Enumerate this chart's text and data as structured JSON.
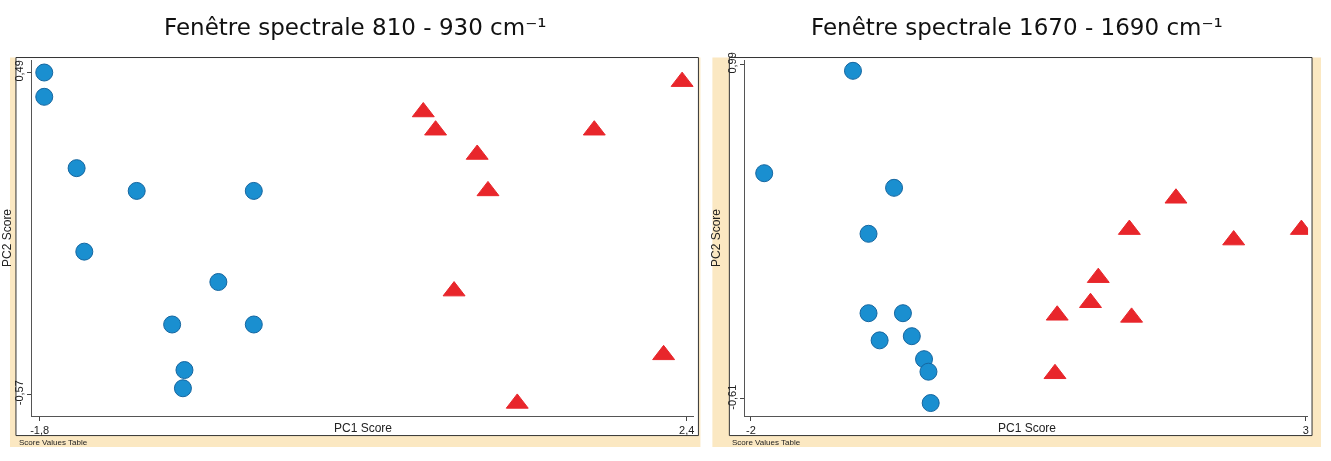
{
  "chart_data": [
    {
      "type": "scatter",
      "title": "Fenêtre spectrale 810 - 930 cm⁻¹",
      "xlabel": "PC1 Score",
      "ylabel": "PC2 Score",
      "annotations": [
        "Score Values Table"
      ],
      "xlim": [
        -1.85,
        2.45
      ],
      "ylim": [
        -0.64,
        0.53
      ],
      "xticks": [
        {
          "value": -1.8,
          "label": "-1,8"
        },
        {
          "value": 2.4,
          "label": "2,4"
        }
      ],
      "yticks": [
        {
          "value": -0.57,
          "label": "-0,57"
        },
        {
          "value": 0.49,
          "label": "0,49"
        }
      ],
      "grid": false,
      "series": [
        {
          "color": "#1a8fd0",
          "marker": "circle",
          "x": [
            -1.77,
            -1.77,
            -1.56,
            -1.17,
            -0.41,
            -1.51,
            -0.64,
            -0.94,
            -0.41,
            -0.86,
            -0.87
          ],
          "values": [
            0.49,
            0.41,
            0.175,
            0.1,
            0.1,
            -0.1,
            -0.2,
            -0.34,
            -0.34,
            -0.49,
            -0.55
          ]
        },
        {
          "color": "#e8262b",
          "marker": "triangle",
          "x": [
            2.37,
            0.69,
            0.77,
            1.04,
            1.11,
            1.8,
            0.89,
            2.25,
            1.3
          ],
          "values": [
            0.46,
            0.36,
            0.3,
            0.22,
            0.1,
            0.3,
            -0.23,
            -0.44,
            -0.6
          ]
        }
      ]
    },
    {
      "type": "scatter",
      "title": "Fenêtre spectrale 1670 - 1690 cm⁻¹",
      "xlabel": "PC1 Score",
      "ylabel": "PC2 Score",
      "annotations": [
        "Score Values Table"
      ],
      "xlim": [
        -2.05,
        3.02
      ],
      "ylim": [
        -0.69,
        1.01
      ],
      "xticks": [
        -2,
        3
      ],
      "yticks": [
        {
          "value": -0.61,
          "label": "-0,61"
        },
        {
          "value": 0.99,
          "label": "0,99"
        }
      ],
      "grid": false,
      "series": [
        {
          "color": "#1a8fd0",
          "marker": "circle",
          "x": [
            -1.08,
            -1.88,
            -0.71,
            -0.94,
            -0.94,
            -0.63,
            -0.84,
            -0.55,
            -0.44,
            -0.4,
            -0.38
          ],
          "values": [
            0.96,
            0.47,
            0.4,
            0.18,
            -0.2,
            -0.2,
            -0.33,
            -0.31,
            -0.42,
            -0.48,
            -0.63
          ]
        },
        {
          "color": "#e8262b",
          "marker": "triangle",
          "x": [
            1.83,
            1.41,
            2.35,
            2.96,
            1.13,
            1.06,
            0.76,
            1.43,
            0.74
          ],
          "values": [
            0.35,
            0.2,
            0.15,
            0.2,
            -0.03,
            -0.15,
            -0.21,
            -0.22,
            -0.49
          ]
        }
      ]
    }
  ]
}
